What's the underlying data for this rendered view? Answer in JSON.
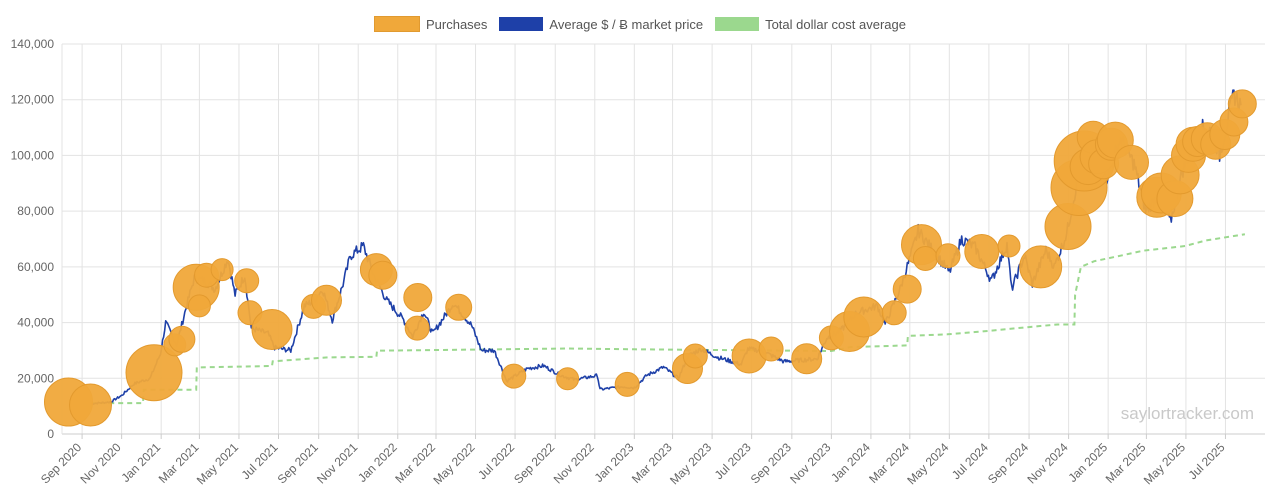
{
  "legend": {
    "purchases": "Purchases",
    "market_price": "Average $ / Ƀ market price",
    "dca": "Total dollar cost average"
  },
  "colors": {
    "purchases": "#f0a83a",
    "market_price": "#1e40a8",
    "dca": "#9bd88e",
    "grid": "#e3e3e3"
  },
  "watermark": "saylortracker.com",
  "chart_data": {
    "type": "line",
    "ylim": [
      0,
      140000
    ],
    "yticks": [
      0,
      20000,
      40000,
      60000,
      80000,
      100000,
      120000,
      140000
    ],
    "ytick_labels": [
      "0",
      "20,000",
      "40,000",
      "60,000",
      "80,000",
      "100,000",
      "120,000",
      "140,000"
    ],
    "xlim": [
      "2020-08-01",
      "2025-08-31"
    ],
    "xticks": [
      "2020-09-01",
      "2020-11-01",
      "2021-01-01",
      "2021-03-01",
      "2021-05-01",
      "2021-07-01",
      "2021-09-01",
      "2021-11-01",
      "2022-01-01",
      "2022-03-01",
      "2022-05-01",
      "2022-07-01",
      "2022-09-01",
      "2022-11-01",
      "2023-01-01",
      "2023-03-01",
      "2023-05-01",
      "2023-07-01",
      "2023-09-01",
      "2023-11-01",
      "2024-01-01",
      "2024-03-01",
      "2024-05-01",
      "2024-07-01",
      "2024-09-01",
      "2024-11-01",
      "2025-01-01",
      "2025-03-01",
      "2025-05-01",
      "2025-07-01"
    ],
    "xtick_labels": [
      "Sep 2020",
      "Nov 2020",
      "Jan 2021",
      "Mar 2021",
      "May 2021",
      "Jul 2021",
      "Sep 2021",
      "Nov 2021",
      "Jan 2022",
      "Mar 2022",
      "May 2022",
      "Jul 2022",
      "Sep 2022",
      "Nov 2022",
      "Jan 2023",
      "Mar 2023",
      "May 2023",
      "Jul 2023",
      "Sep 2023",
      "Nov 2023",
      "Jan 2024",
      "Mar 2024",
      "May 2024",
      "Jul 2024",
      "Sep 2024",
      "Nov 2024",
      "Jan 2025",
      "Mar 2025",
      "May 2025",
      "Jul 2025"
    ],
    "series": [
      {
        "name": "Average $ / Ƀ market price",
        "type": "line",
        "points": [
          [
            "2020-09-15",
            10900
          ],
          [
            "2020-10-15",
            11500
          ],
          [
            "2020-11-01",
            13800
          ],
          [
            "2020-11-20",
            18000
          ],
          [
            "2020-12-15",
            20000
          ],
          [
            "2020-12-31",
            28900
          ],
          [
            "2021-01-08",
            40000
          ],
          [
            "2021-01-25",
            32000
          ],
          [
            "2021-02-08",
            45000
          ],
          [
            "2021-02-21",
            56000
          ],
          [
            "2021-03-10",
            55000
          ],
          [
            "2021-03-25",
            52000
          ],
          [
            "2021-04-14",
            63000
          ],
          [
            "2021-04-25",
            50000
          ],
          [
            "2021-05-10",
            57000
          ],
          [
            "2021-05-20",
            38000
          ],
          [
            "2021-06-15",
            36000
          ],
          [
            "2021-06-25",
            31000
          ],
          [
            "2021-07-20",
            30000
          ],
          [
            "2021-08-10",
            46000
          ],
          [
            "2021-08-25",
            48000
          ],
          [
            "2021-09-07",
            52000
          ],
          [
            "2021-09-22",
            41000
          ],
          [
            "2021-10-10",
            55000
          ],
          [
            "2021-10-20",
            64000
          ],
          [
            "2021-11-09",
            67500
          ],
          [
            "2021-11-25",
            57000
          ],
          [
            "2021-12-15",
            48000
          ],
          [
            "2022-01-10",
            41000
          ],
          [
            "2022-01-24",
            35000
          ],
          [
            "2022-02-10",
            44000
          ],
          [
            "2022-02-24",
            36000
          ],
          [
            "2022-03-28",
            47000
          ],
          [
            "2022-04-25",
            39000
          ],
          [
            "2022-05-10",
            30000
          ],
          [
            "2022-05-30",
            30000
          ],
          [
            "2022-06-13",
            22000
          ],
          [
            "2022-06-18",
            19000
          ],
          [
            "2022-07-20",
            23500
          ],
          [
            "2022-08-14",
            24500
          ],
          [
            "2022-09-10",
            21000
          ],
          [
            "2022-10-01",
            19500
          ],
          [
            "2022-11-05",
            21000
          ],
          [
            "2022-11-09",
            16000
          ],
          [
            "2022-12-15",
            17000
          ],
          [
            "2023-01-01",
            16600
          ],
          [
            "2023-01-20",
            21000
          ],
          [
            "2023-02-15",
            24000
          ],
          [
            "2023-03-10",
            20000
          ],
          [
            "2023-03-25",
            28000
          ],
          [
            "2023-04-14",
            30500
          ],
          [
            "2023-05-10",
            27500
          ],
          [
            "2023-06-15",
            25000
          ],
          [
            "2023-06-25",
            30500
          ],
          [
            "2023-07-15",
            30000
          ],
          [
            "2023-08-20",
            26000
          ],
          [
            "2023-09-15",
            26500
          ],
          [
            "2023-10-10",
            27000
          ],
          [
            "2023-10-25",
            34500
          ],
          [
            "2023-11-15",
            37000
          ],
          [
            "2023-12-10",
            43500
          ],
          [
            "2024-01-11",
            46000
          ],
          [
            "2024-01-23",
            39500
          ],
          [
            "2024-02-15",
            52000
          ],
          [
            "2024-03-05",
            66000
          ],
          [
            "2024-03-14",
            73000
          ],
          [
            "2024-04-15",
            63000
          ],
          [
            "2024-05-01",
            58000
          ],
          [
            "2024-05-20",
            70000
          ],
          [
            "2024-06-10",
            67000
          ],
          [
            "2024-07-05",
            55000
          ],
          [
            "2024-07-29",
            68000
          ],
          [
            "2024-08-05",
            52000
          ],
          [
            "2024-08-25",
            64000
          ],
          [
            "2024-09-06",
            54000
          ],
          [
            "2024-09-27",
            66000
          ],
          [
            "2024-10-10",
            60000
          ],
          [
            "2024-10-29",
            72000
          ],
          [
            "2024-11-12",
            88000
          ],
          [
            "2024-11-22",
            99000
          ],
          [
            "2024-12-17",
            106000
          ],
          [
            "2024-12-30",
            92000
          ],
          [
            "2025-01-20",
            106000
          ],
          [
            "2025-02-10",
            97000
          ],
          [
            "2025-02-28",
            80000
          ],
          [
            "2025-03-20",
            86000
          ],
          [
            "2025-04-07",
            76000
          ],
          [
            "2025-04-25",
            94000
          ],
          [
            "2025-05-22",
            110000
          ],
          [
            "2025-06-10",
            109000
          ],
          [
            "2025-06-22",
            100000
          ],
          [
            "2025-07-14",
            122000
          ],
          [
            "2025-07-25",
            118000
          ]
        ]
      },
      {
        "name": "Total dollar cost average",
        "type": "step",
        "points": [
          [
            "2020-09-15",
            11100
          ],
          [
            "2020-12-04",
            11100
          ],
          [
            "2020-12-05",
            15900
          ],
          [
            "2021-02-24",
            15900
          ],
          [
            "2021-02-25",
            23900
          ],
          [
            "2021-06-21",
            24400
          ],
          [
            "2021-06-22",
            26100
          ],
          [
            "2021-09-15",
            27500
          ],
          [
            "2021-11-29",
            27700
          ],
          [
            "2021-11-30",
            29900
          ],
          [
            "2022-09-20",
            30700
          ],
          [
            "2023-01-01",
            30400
          ],
          [
            "2023-11-01",
            29800
          ],
          [
            "2023-11-30",
            31200
          ],
          [
            "2024-02-26",
            31800
          ],
          [
            "2024-02-27",
            35200
          ],
          [
            "2024-04-28",
            35800
          ],
          [
            "2024-06-20",
            36800
          ],
          [
            "2024-09-20",
            38800
          ],
          [
            "2024-10-15",
            39300
          ],
          [
            "2024-11-10",
            39300
          ],
          [
            "2024-11-11",
            50000
          ],
          [
            "2024-11-20",
            60000
          ],
          [
            "2024-12-10",
            62000
          ],
          [
            "2025-01-20",
            64000
          ],
          [
            "2025-02-24",
            65800
          ],
          [
            "2025-04-30",
            67500
          ],
          [
            "2025-06-01",
            69500
          ],
          [
            "2025-07-31",
            71700
          ]
        ]
      },
      {
        "name": "Purchases",
        "type": "scatter",
        "points": [
          [
            "2020-08-11",
            11500,
            24
          ],
          [
            "2020-09-14",
            10400,
            21
          ],
          [
            "2020-12-21",
            22000,
            28
          ],
          [
            "2021-01-22",
            32000,
            11
          ],
          [
            "2021-02-02",
            34000,
            13
          ],
          [
            "2021-02-24",
            52700,
            23
          ],
          [
            "2021-03-01",
            46000,
            11
          ],
          [
            "2021-03-12",
            57000,
            12
          ],
          [
            "2021-04-05",
            59000,
            11
          ],
          [
            "2021-05-13",
            55000,
            12
          ],
          [
            "2021-05-18",
            43500,
            12
          ],
          [
            "2021-06-21",
            37500,
            20
          ],
          [
            "2021-08-24",
            45800,
            12
          ],
          [
            "2021-09-13",
            48000,
            15
          ],
          [
            "2021-11-29",
            59000,
            16
          ],
          [
            "2021-12-09",
            57000,
            14
          ],
          [
            "2022-01-31",
            38000,
            12
          ],
          [
            "2022-02-01",
            49000,
            14
          ],
          [
            "2022-04-05",
            45500,
            13
          ],
          [
            "2022-06-29",
            20800,
            12
          ],
          [
            "2022-09-20",
            19800,
            11
          ],
          [
            "2022-12-21",
            17800,
            12
          ],
          [
            "2023-03-24",
            23500,
            15
          ],
          [
            "2023-04-05",
            28000,
            12
          ],
          [
            "2023-06-27",
            28000,
            17
          ],
          [
            "2023-07-31",
            30500,
            12
          ],
          [
            "2023-09-24",
            27000,
            15
          ],
          [
            "2023-11-01",
            34500,
            12
          ],
          [
            "2023-11-29",
            36800,
            20
          ],
          [
            "2023-12-21",
            42000,
            20
          ],
          [
            "2024-02-06",
            43500,
            12
          ],
          [
            "2024-02-26",
            52000,
            14
          ],
          [
            "2024-03-19",
            68000,
            20
          ],
          [
            "2024-03-25",
            63000,
            12
          ],
          [
            "2024-04-29",
            64000,
            12
          ],
          [
            "2024-06-20",
            65500,
            17
          ],
          [
            "2024-08-01",
            67500,
            11
          ],
          [
            "2024-09-19",
            60000,
            21
          ],
          [
            "2024-10-31",
            74500,
            23
          ],
          [
            "2024-11-17",
            88500,
            28
          ],
          [
            "2024-11-25",
            98000,
            30
          ],
          [
            "2024-12-01",
            96000,
            18
          ],
          [
            "2024-12-09",
            106500,
            16
          ],
          [
            "2024-12-15",
            99500,
            17
          ],
          [
            "2024-12-25",
            97000,
            15
          ],
          [
            "2025-01-06",
            104000,
            16
          ],
          [
            "2025-01-12",
            105500,
            18
          ],
          [
            "2025-02-06",
            97500,
            17
          ],
          [
            "2025-03-17",
            85000,
            20
          ],
          [
            "2025-03-24",
            86500,
            20
          ],
          [
            "2025-04-14",
            84500,
            18
          ],
          [
            "2025-04-22",
            93000,
            19
          ],
          [
            "2025-05-05",
            100000,
            17
          ],
          [
            "2025-05-12",
            104000,
            17
          ],
          [
            "2025-05-19",
            105000,
            15
          ],
          [
            "2025-06-03",
            106000,
            16
          ],
          [
            "2025-06-16",
            104000,
            15
          ],
          [
            "2025-06-30",
            107500,
            15
          ],
          [
            "2025-07-14",
            112000,
            14
          ],
          [
            "2025-07-27",
            118500,
            14
          ]
        ]
      }
    ]
  }
}
